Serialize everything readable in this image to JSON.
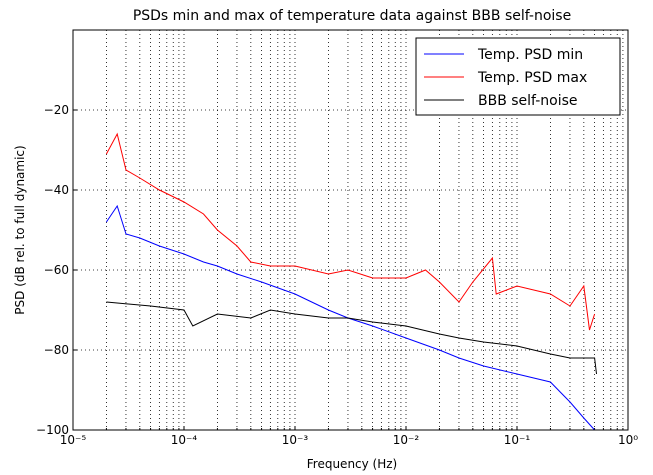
{
  "chart_data": {
    "type": "line",
    "title": "PSDs min and max of temperature data against BBB self-noise",
    "xlabel": "Frequency (Hz)",
    "ylabel": "PSD (dB rel. to full dynamic)",
    "xscale": "log",
    "grid": true,
    "legend": "upper right",
    "xlim": [
      1e-05,
      1
    ],
    "ylim": [
      -100,
      0
    ],
    "xticks": [
      {
        "value": 1e-05,
        "label": "10⁻⁵"
      },
      {
        "value": 0.0001,
        "label": "10⁻⁴"
      },
      {
        "value": 0.001,
        "label": "10⁻³"
      },
      {
        "value": 0.01,
        "label": "10⁻²"
      },
      {
        "value": 0.1,
        "label": "10⁻¹"
      },
      {
        "value": 1,
        "label": "10⁰"
      }
    ],
    "xminorticks": [
      2e-05,
      3e-05,
      4e-05,
      5e-05,
      6e-05,
      7e-05,
      8e-05,
      9e-05,
      0.0002,
      0.0003,
      0.0004,
      0.0005,
      0.0006,
      0.0007,
      0.0008,
      0.0009,
      0.002,
      0.003,
      0.004,
      0.005,
      0.006,
      0.007,
      0.008,
      0.009,
      0.02,
      0.03,
      0.04,
      0.05,
      0.06,
      0.07,
      0.08,
      0.09,
      0.2,
      0.3,
      0.4,
      0.5,
      0.6,
      0.7,
      0.8,
      0.9
    ],
    "yticks": [
      {
        "value": -100,
        "label": "−100"
      },
      {
        "value": -80,
        "label": "−80"
      },
      {
        "value": -60,
        "label": "−60"
      },
      {
        "value": -40,
        "label": "−40"
      },
      {
        "value": -20,
        "label": "−20"
      }
    ],
    "series": [
      {
        "name": "Temp. PSD min",
        "color": "#0000ff",
        "x": [
          2e-05,
          2.5e-05,
          3e-05,
          4e-05,
          6e-05,
          0.0001,
          0.00015,
          0.0002,
          0.0003,
          0.0005,
          0.001,
          0.002,
          0.003,
          0.005,
          0.01,
          0.02,
          0.03,
          0.05,
          0.1,
          0.2,
          0.3,
          0.4,
          0.5
        ],
        "values": [
          -48,
          -44,
          -51,
          -52,
          -54,
          -56,
          -58,
          -59,
          -61,
          -63,
          -66,
          -70,
          -72,
          -74,
          -77,
          -80,
          -82,
          -84,
          -86,
          -88,
          -93,
          -97,
          -100
        ]
      },
      {
        "name": "Temp. PSD max",
        "color": "#ff0000",
        "x": [
          2e-05,
          2.5e-05,
          3e-05,
          4e-05,
          6e-05,
          0.0001,
          0.00015,
          0.0002,
          0.0003,
          0.0004,
          0.0006,
          0.001,
          0.002,
          0.003,
          0.005,
          0.01,
          0.015,
          0.02,
          0.03,
          0.04,
          0.06,
          0.065,
          0.1,
          0.2,
          0.3,
          0.4,
          0.45,
          0.5
        ],
        "values": [
          -31,
          -26,
          -35,
          -37,
          -40,
          -43,
          -46,
          -50,
          -54,
          -58,
          -59,
          -59,
          -61,
          -60,
          -62,
          -62,
          -60,
          -63,
          -68,
          -63,
          -57,
          -66,
          -64,
          -66,
          -69,
          -64,
          -75,
          -71
        ]
      },
      {
        "name": "BBB self-noise",
        "color": "#000000",
        "x": [
          2e-05,
          5e-05,
          0.0001,
          0.00012,
          0.0002,
          0.0004,
          0.0006,
          0.001,
          0.002,
          0.003,
          0.005,
          0.01,
          0.02,
          0.03,
          0.05,
          0.1,
          0.2,
          0.3,
          0.5,
          0.52
        ],
        "values": [
          -68,
          -69,
          -70,
          -74,
          -71,
          -72,
          -70,
          -71,
          -72,
          -72,
          -73,
          -74,
          -76,
          -77,
          -78,
          -79,
          -81,
          -82,
          -82,
          -86
        ]
      }
    ]
  }
}
